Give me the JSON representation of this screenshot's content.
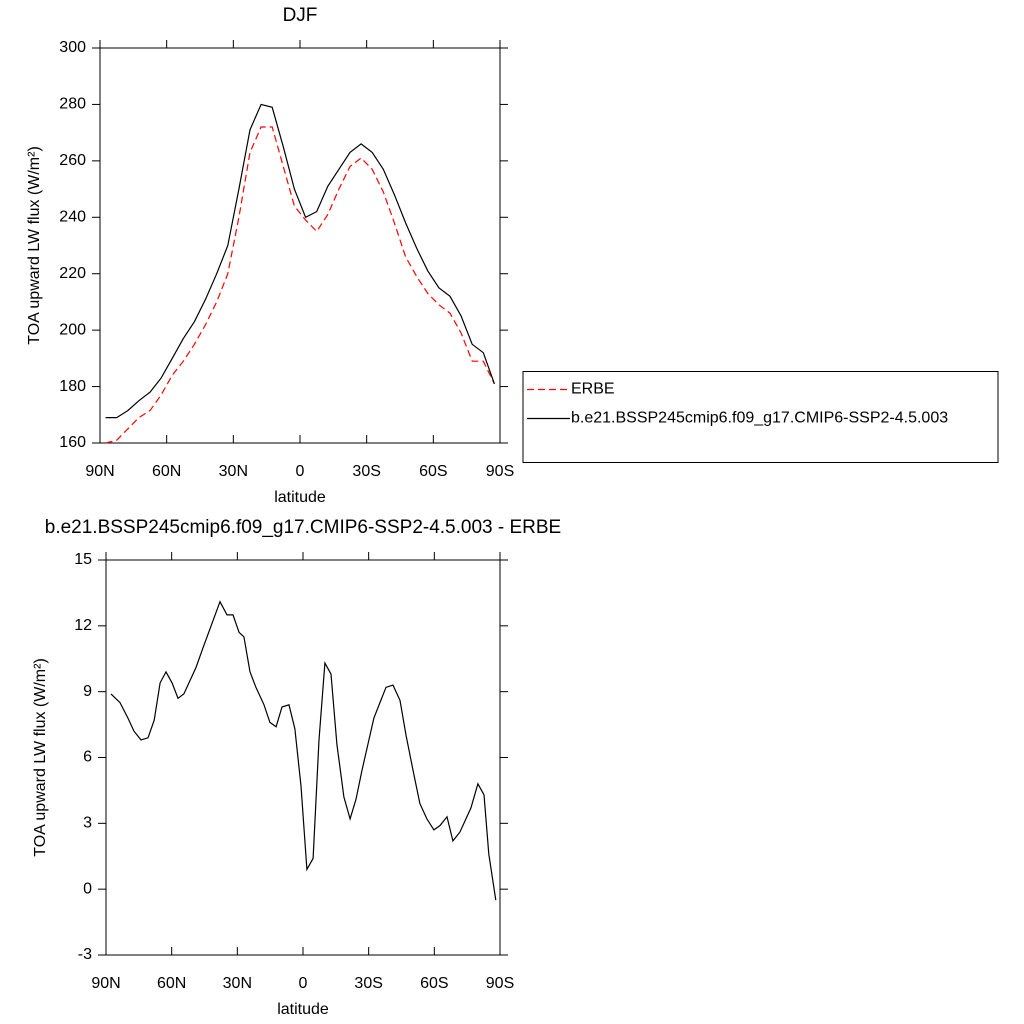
{
  "chart_data": [
    {
      "type": "line",
      "title": "DJF",
      "xlabel": "latitude",
      "ylabel": "TOA upward LW flux (W/m²)",
      "x": [
        87.5,
        82.5,
        77.5,
        72.5,
        67.5,
        62.5,
        57.5,
        52.5,
        47.5,
        42.5,
        37.5,
        32.5,
        27.5,
        22.5,
        17.5,
        12.5,
        7.5,
        2.5,
        -2.5,
        -7.5,
        -12.5,
        -17.5,
        -22.5,
        -27.5,
        -32.5,
        -37.5,
        -42.5,
        -47.5,
        -52.5,
        -57.5,
        -62.5,
        -67.5,
        -72.5,
        -77.5,
        -82.5,
        -87.5
      ],
      "series": [
        {
          "name": "ERBE",
          "color": "#ff0000",
          "dashed": true,
          "values": [
            160,
            161,
            165,
            169,
            171.5,
            177,
            184,
            189,
            195,
            202,
            210,
            220,
            240,
            263,
            272,
            272,
            258,
            244,
            239,
            235,
            241,
            250,
            258,
            261,
            257,
            249,
            238,
            226,
            219,
            213,
            209,
            206,
            199,
            189,
            189,
            181
          ]
        },
        {
          "name": "b.e21.BSSP245cmip6.f09_g17.CMIP6-SSP2-4.5.003",
          "color": "#000000",
          "dashed": false,
          "values": [
            169,
            169,
            171.5,
            175,
            178,
            183,
            190,
            197,
            203,
            211,
            220,
            230,
            250,
            271,
            280,
            279,
            265,
            250,
            240,
            242,
            251,
            257,
            263,
            266,
            263,
            257,
            248,
            238,
            229,
            221,
            215,
            212,
            205,
            195,
            192,
            181
          ]
        }
      ],
      "xlim": [
        90,
        -90
      ],
      "xticks": [
        {
          "value": 90,
          "label": "90N"
        },
        {
          "value": 60,
          "label": "60N"
        },
        {
          "value": 30,
          "label": "30N"
        },
        0,
        {
          "value": -30,
          "label": "30S"
        },
        {
          "value": -60,
          "label": "60S"
        },
        {
          "value": -90,
          "label": "90S"
        }
      ],
      "ylim": [
        160,
        300
      ],
      "yticks": [
        160,
        180,
        200,
        220,
        240,
        260,
        280,
        300
      ],
      "legend": "right"
    },
    {
      "type": "line",
      "title": "b.e21.BSSP245cmip6.f09_g17.CMIP6-SSP2-4.5.003 - ERBE",
      "xlabel": "latitude",
      "ylabel": "TOA upward LW flux (W/m²)",
      "x": [
        87.7,
        83.6,
        80,
        77.2,
        74,
        70.8,
        68,
        65.3,
        62.6,
        59.8,
        57.1,
        54.4,
        48.9,
        45.7,
        37.9,
        34.7,
        32,
        29.2,
        27,
        24.2,
        21.5,
        17.8,
        15.1,
        12.3,
        9.6,
        6.4,
        3.7,
        0.9,
        -1.8,
        -4.6,
        -7.3,
        -10,
        -12.8,
        -15.5,
        -18.7,
        -21.5,
        -24.2,
        -26.9,
        -32.4,
        -37.9,
        -41.1,
        -44.3,
        -47.1,
        -50.7,
        -53.4,
        -56.6,
        -59.8,
        -62.6,
        -65.8,
        -68.5,
        -71.7,
        -76.7,
        -79.9,
        -82.7,
        -84.9,
        -88.1
      ],
      "values": [
        8.9,
        8.5,
        7.8,
        7.2,
        6.8,
        6.9,
        7.7,
        9.4,
        9.9,
        9.4,
        8.7,
        8.9,
        10.1,
        11,
        13.1,
        12.5,
        12.5,
        11.7,
        11.5,
        9.9,
        9.2,
        8.4,
        7.6,
        7.4,
        8.3,
        8.4,
        7.3,
        4.7,
        0.9,
        1.4,
        6.8,
        10.3,
        9.8,
        6.6,
        4.2,
        3.2,
        4.1,
        5.4,
        7.8,
        9.2,
        9.3,
        8.6,
        7,
        5.2,
        3.9,
        3.2,
        2.7,
        2.9,
        3.3,
        2.2,
        2.6,
        3.7,
        4.8,
        4.3,
        1.6,
        -0.5
      ],
      "color": "#000000",
      "xlim": [
        90,
        -90
      ],
      "xticks": [
        {
          "value": 90,
          "label": "90N"
        },
        {
          "value": 60,
          "label": "60N"
        },
        {
          "value": 30,
          "label": "30N"
        },
        0,
        {
          "value": -30,
          "label": "30S"
        },
        {
          "value": -60,
          "label": "60S"
        },
        {
          "value": -90,
          "label": "90S"
        }
      ],
      "ylim": [
        -3,
        15
      ],
      "yticks": [
        -3,
        0,
        3,
        6,
        9,
        12,
        15
      ]
    }
  ]
}
